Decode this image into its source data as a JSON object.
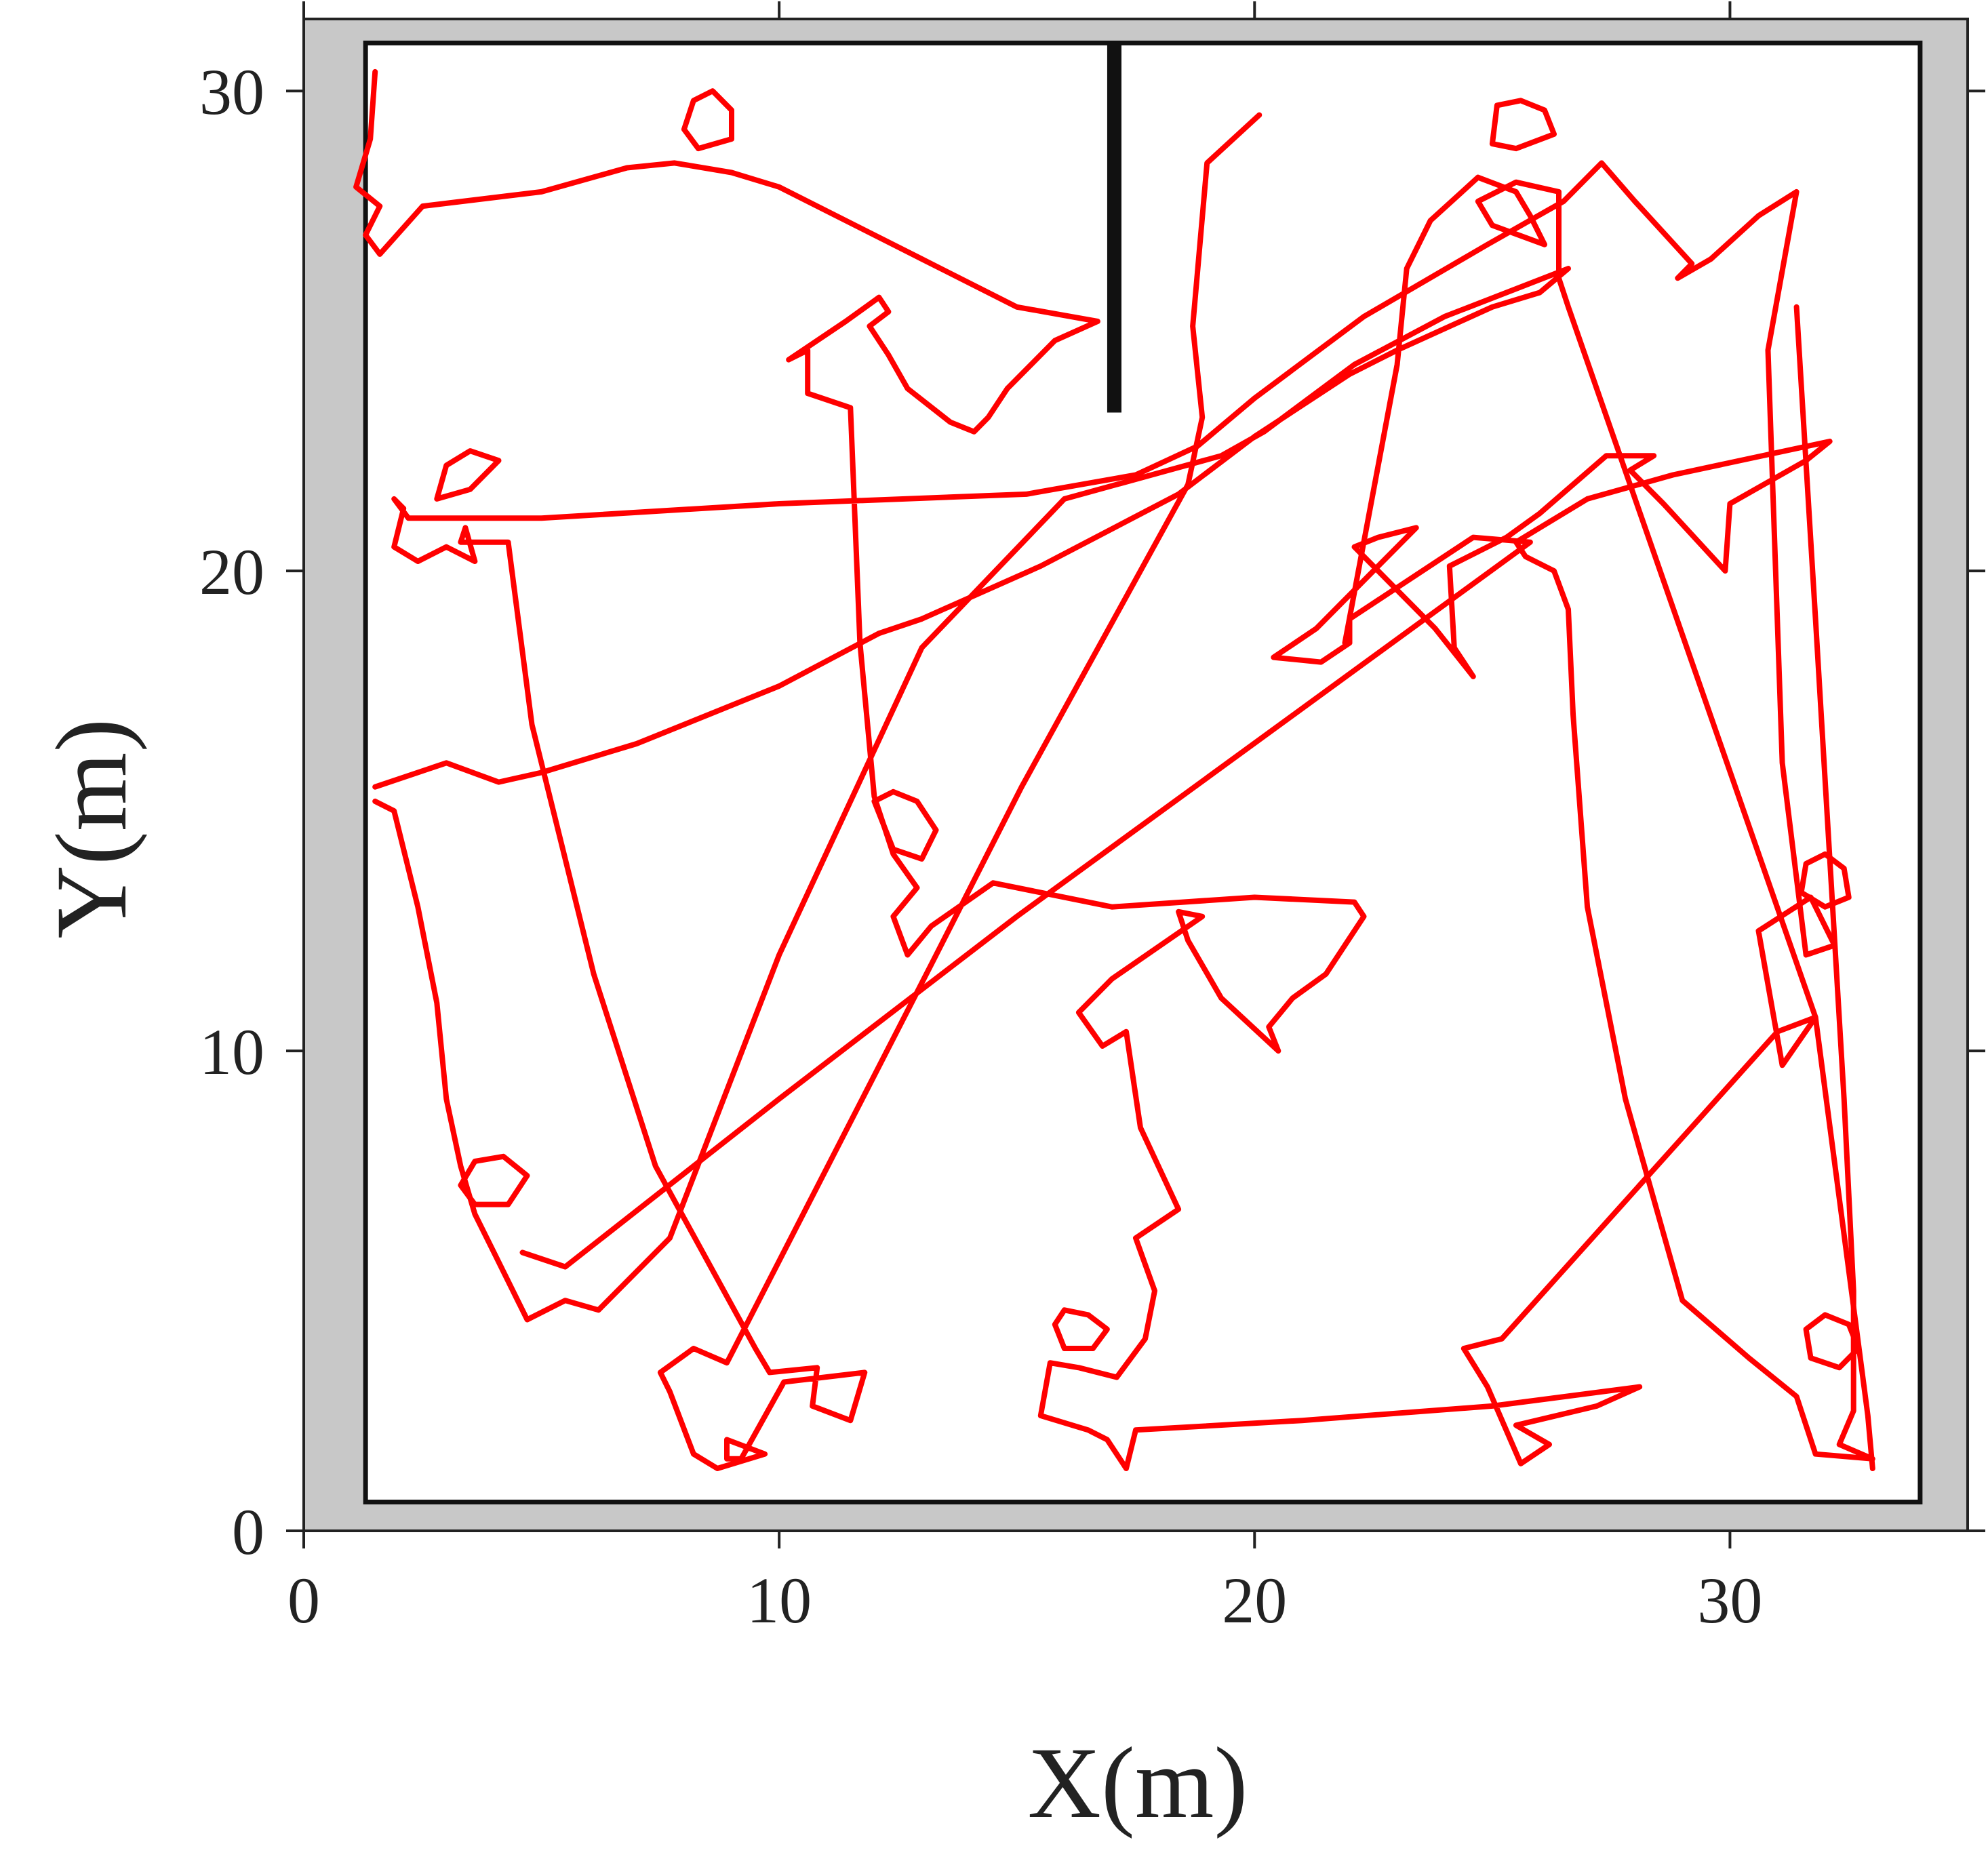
{
  "chart_data": {
    "type": "line",
    "title": "",
    "xlabel": "X(m)",
    "ylabel": "Y(m)",
    "xlim": [
      0,
      35
    ],
    "ylim": [
      0,
      31.5
    ],
    "xticks": [
      "0",
      "10",
      "20",
      "30"
    ],
    "yticks": [
      "0",
      "10",
      "20",
      "30"
    ],
    "grid": false,
    "legend": "none",
    "colors": {
      "trajectory": "#ff0000",
      "map_border": "#c8c8c8",
      "map_walls": "#111111",
      "axis": "#222222"
    },
    "map": {
      "outer_extent": {
        "x": [
          0,
          35
        ],
        "y": [
          0,
          31.5
        ]
      },
      "inner_floor": {
        "x": [
          1.3,
          34.0
        ],
        "y": [
          0.6,
          31.0
        ]
      },
      "partition_wall": {
        "x": [
          16.9,
          17.2
        ],
        "y": [
          23.3,
          31.0
        ]
      }
    },
    "series": [
      {
        "points": [
          [
            1.5,
            30.4
          ],
          [
            1.4,
            29.0
          ],
          [
            1.1,
            28.0
          ],
          [
            1.6,
            27.6
          ],
          [
            1.3,
            27.0
          ],
          [
            1.6,
            26.6
          ],
          [
            2.5,
            27.6
          ],
          [
            5.0,
            27.9
          ],
          [
            6.8,
            28.4
          ],
          [
            7.8,
            28.5
          ],
          [
            9.0,
            28.3
          ],
          [
            10.0,
            28.0
          ],
          [
            13.0,
            26.5
          ],
          [
            15.0,
            25.5
          ],
          [
            16.7,
            25.2
          ],
          [
            15.8,
            24.8
          ],
          [
            14.8,
            23.8
          ],
          [
            14.4,
            23.2
          ],
          [
            14.1,
            22.9
          ],
          [
            13.6,
            23.1
          ],
          [
            12.7,
            23.8
          ],
          [
            12.3,
            24.5
          ],
          [
            11.9,
            25.1
          ],
          [
            12.3,
            25.4
          ],
          [
            12.1,
            25.7
          ],
          [
            11.4,
            25.2
          ],
          [
            10.2,
            24.4
          ],
          [
            10.6,
            24.6
          ],
          [
            10.6,
            23.7
          ],
          [
            11.5,
            23.4
          ],
          [
            11.7,
            18.5
          ],
          [
            12.0,
            15.3
          ],
          [
            12.4,
            14.1
          ],
          [
            12.9,
            13.4
          ],
          [
            12.4,
            12.8
          ],
          [
            12.7,
            12.0
          ],
          [
            13.2,
            12.6
          ],
          [
            14.5,
            13.5
          ],
          [
            17.0,
            13.0
          ],
          [
            20.0,
            13.2
          ],
          [
            22.1,
            13.1
          ],
          [
            22.3,
            12.8
          ],
          [
            21.5,
            11.6
          ],
          [
            20.8,
            11.1
          ],
          [
            20.3,
            10.5
          ],
          [
            20.5,
            10.0
          ],
          [
            19.3,
            11.1
          ],
          [
            18.6,
            12.3
          ],
          [
            18.4,
            12.9
          ],
          [
            18.9,
            12.8
          ],
          [
            17.0,
            11.5
          ],
          [
            16.3,
            10.8
          ],
          [
            16.8,
            10.1
          ],
          [
            17.3,
            10.4
          ],
          [
            17.6,
            8.4
          ],
          [
            18.4,
            6.7
          ],
          [
            17.5,
            6.1
          ],
          [
            17.9,
            5.0
          ],
          [
            17.7,
            4.0
          ],
          [
            17.1,
            3.2
          ],
          [
            16.3,
            3.4
          ],
          [
            15.7,
            3.5
          ],
          [
            15.5,
            2.4
          ],
          [
            16.5,
            2.1
          ],
          [
            16.9,
            1.9
          ],
          [
            17.3,
            1.3
          ],
          [
            17.5,
            2.1
          ],
          [
            21.0,
            2.3
          ],
          [
            25.0,
            2.6
          ],
          [
            28.1,
            3.0
          ],
          [
            27.2,
            2.6
          ],
          [
            25.5,
            2.2
          ],
          [
            26.2,
            1.8
          ],
          [
            25.6,
            1.4
          ],
          [
            24.9,
            3.0
          ],
          [
            24.4,
            3.8
          ],
          [
            25.2,
            4.0
          ],
          [
            31.0,
            10.4
          ],
          [
            31.8,
            10.7
          ],
          [
            31.1,
            9.7
          ],
          [
            30.6,
            12.5
          ],
          [
            31.7,
            13.2
          ],
          [
            32.2,
            12.2
          ],
          [
            31.6,
            12.0
          ],
          [
            31.1,
            16.0
          ],
          [
            30.8,
            24.6
          ],
          [
            31.4,
            27.9
          ],
          [
            30.6,
            27.4
          ],
          [
            29.6,
            26.5
          ],
          [
            28.9,
            26.1
          ],
          [
            29.2,
            26.4
          ],
          [
            28.0,
            27.7
          ],
          [
            27.3,
            28.5
          ],
          [
            26.5,
            27.7
          ],
          [
            24.9,
            26.8
          ],
          [
            22.3,
            25.3
          ],
          [
            20.0,
            23.6
          ],
          [
            18.8,
            22.6
          ],
          [
            17.5,
            22.0
          ],
          [
            15.2,
            21.6
          ],
          [
            10.0,
            21.4
          ],
          [
            5.0,
            21.1
          ],
          [
            2.2,
            21.1
          ],
          [
            1.9,
            21.5
          ],
          [
            2.1,
            21.3
          ],
          [
            1.9,
            20.5
          ],
          [
            2.4,
            20.2
          ],
          [
            3.0,
            20.5
          ],
          [
            3.6,
            20.2
          ],
          [
            3.4,
            20.9
          ],
          [
            3.3,
            20.6
          ],
          [
            4.3,
            20.6
          ],
          [
            4.8,
            16.8
          ],
          [
            6.1,
            11.6
          ],
          [
            7.4,
            7.6
          ],
          [
            9.5,
            3.8
          ],
          [
            9.8,
            3.3
          ],
          [
            10.8,
            3.4
          ],
          [
            10.7,
            2.6
          ],
          [
            11.5,
            2.3
          ],
          [
            11.8,
            3.3
          ],
          [
            10.1,
            3.1
          ],
          [
            9.2,
            1.5
          ],
          [
            8.9,
            1.5
          ],
          [
            8.9,
            1.9
          ],
          [
            9.7,
            1.6
          ],
          [
            8.7,
            1.3
          ],
          [
            8.2,
            1.6
          ],
          [
            7.7,
            2.9
          ],
          [
            7.5,
            3.3
          ],
          [
            8.2,
            3.8
          ],
          [
            8.9,
            3.5
          ],
          [
            13.2,
            11.8
          ],
          [
            15.1,
            15.5
          ],
          [
            18.6,
            21.8
          ],
          [
            18.9,
            23.2
          ],
          [
            18.7,
            25.1
          ],
          [
            19.0,
            28.5
          ],
          [
            20.1,
            29.5
          ]
        ]
      },
      {
        "points": [
          [
            1.5,
            15.5
          ],
          [
            3.0,
            16.0
          ],
          [
            4.1,
            15.6
          ],
          [
            5.0,
            15.8
          ],
          [
            7.0,
            16.4
          ],
          [
            10.0,
            17.6
          ],
          [
            12.1,
            18.7
          ],
          [
            13.0,
            19.0
          ],
          [
            15.5,
            20.1
          ],
          [
            18.4,
            21.6
          ],
          [
            20.0,
            22.8
          ],
          [
            22.0,
            24.1
          ],
          [
            23.0,
            24.6
          ],
          [
            25.0,
            25.5
          ],
          [
            26.0,
            25.8
          ],
          [
            26.6,
            26.3
          ],
          [
            24.0,
            25.3
          ],
          [
            22.1,
            24.3
          ],
          [
            20.2,
            22.9
          ],
          [
            19.3,
            22.4
          ],
          [
            16.0,
            21.5
          ],
          [
            13.0,
            18.4
          ],
          [
            10.0,
            12.0
          ],
          [
            7.7,
            6.1
          ],
          [
            6.2,
            4.6
          ],
          [
            5.5,
            4.8
          ],
          [
            4.7,
            4.4
          ],
          [
            4.0,
            5.8
          ],
          [
            3.6,
            6.6
          ],
          [
            3.3,
            7.6
          ],
          [
            3.0,
            9.0
          ],
          [
            2.8,
            11.0
          ],
          [
            2.4,
            13.0
          ],
          [
            1.9,
            15.0
          ],
          [
            1.5,
            15.2
          ]
        ]
      },
      {
        "points": [
          [
            31.4,
            25.5
          ],
          [
            31.8,
            19.0
          ],
          [
            32.4,
            9.0
          ],
          [
            32.6,
            5.0
          ],
          [
            32.6,
            2.5
          ],
          [
            32.3,
            1.8
          ],
          [
            33.0,
            1.5
          ],
          [
            31.8,
            1.6
          ],
          [
            31.4,
            2.8
          ],
          [
            30.4,
            3.6
          ],
          [
            29.0,
            4.8
          ],
          [
            27.8,
            9.0
          ],
          [
            27.0,
            13.0
          ],
          [
            26.7,
            17.0
          ],
          [
            26.6,
            19.2
          ],
          [
            26.3,
            20.0
          ],
          [
            25.7,
            20.3
          ],
          [
            25.5,
            20.6
          ],
          [
            27.0,
            21.5
          ],
          [
            28.8,
            22.0
          ],
          [
            32.1,
            22.7
          ],
          [
            31.6,
            22.3
          ],
          [
            30.0,
            21.4
          ],
          [
            29.9,
            20.0
          ],
          [
            28.6,
            21.4
          ],
          [
            27.9,
            22.1
          ],
          [
            28.4,
            22.4
          ],
          [
            27.4,
            22.4
          ],
          [
            26.0,
            21.2
          ],
          [
            25.3,
            20.7
          ],
          [
            24.1,
            20.1
          ],
          [
            24.2,
            18.4
          ],
          [
            24.6,
            17.8
          ],
          [
            23.8,
            18.8
          ],
          [
            22.1,
            20.5
          ],
          [
            22.6,
            20.7
          ],
          [
            23.4,
            20.9
          ],
          [
            22.1,
            19.6
          ],
          [
            21.3,
            18.8
          ],
          [
            20.4,
            18.2
          ],
          [
            21.4,
            18.1
          ],
          [
            22.0,
            18.5
          ],
          [
            22.0,
            19.0
          ],
          [
            24.6,
            20.7
          ],
          [
            25.8,
            20.6
          ],
          [
            15.0,
            12.8
          ],
          [
            10.0,
            9.0
          ],
          [
            5.5,
            5.5
          ],
          [
            4.6,
            5.8
          ]
        ]
      },
      {
        "points": [
          [
            21.9,
            18.5
          ],
          [
            23.0,
            24.3
          ],
          [
            23.2,
            26.3
          ],
          [
            23.7,
            27.3
          ],
          [
            24.7,
            28.2
          ],
          [
            25.5,
            27.9
          ],
          [
            25.8,
            27.4
          ],
          [
            26.1,
            26.8
          ],
          [
            25.0,
            27.2
          ],
          [
            24.7,
            27.7
          ],
          [
            25.5,
            28.1
          ],
          [
            26.4,
            27.9
          ],
          [
            26.4,
            26.1
          ],
          [
            26.6,
            25.5
          ],
          [
            31.8,
            10.7
          ],
          [
            32.9,
            2.4
          ],
          [
            33.0,
            1.3
          ]
        ]
      },
      {
        "points": [
          [
            2.8,
            21.5
          ],
          [
            3.0,
            22.2
          ],
          [
            3.5,
            22.5
          ],
          [
            4.1,
            22.3
          ],
          [
            3.5,
            21.7
          ],
          [
            2.8,
            21.5
          ]
        ]
      },
      {
        "points": [
          [
            8.0,
            29.2
          ],
          [
            8.2,
            29.8
          ],
          [
            8.6,
            30.0
          ],
          [
            9.0,
            29.6
          ],
          [
            9.0,
            29.0
          ],
          [
            8.3,
            28.8
          ],
          [
            8.0,
            29.2
          ]
        ]
      },
      {
        "points": [
          [
            25.0,
            28.9
          ],
          [
            25.1,
            29.7
          ],
          [
            25.6,
            29.8
          ],
          [
            26.1,
            29.6
          ],
          [
            26.3,
            29.1
          ],
          [
            25.5,
            28.8
          ],
          [
            25.0,
            28.9
          ]
        ]
      },
      {
        "points": [
          [
            3.3,
            7.2
          ],
          [
            3.6,
            7.7
          ],
          [
            4.2,
            7.8
          ],
          [
            4.7,
            7.4
          ],
          [
            4.3,
            6.8
          ],
          [
            3.6,
            6.8
          ],
          [
            3.3,
            7.2
          ]
        ]
      },
      {
        "points": [
          [
            15.8,
            4.3
          ],
          [
            16.0,
            4.6
          ],
          [
            16.5,
            4.5
          ],
          [
            16.9,
            4.2
          ],
          [
            16.6,
            3.8
          ],
          [
            16.0,
            3.8
          ],
          [
            15.8,
            4.3
          ]
        ]
      },
      {
        "points": [
          [
            31.6,
            13.9
          ],
          [
            32.0,
            14.1
          ],
          [
            32.4,
            13.8
          ],
          [
            32.5,
            13.2
          ],
          [
            32.0,
            13.0
          ],
          [
            31.5,
            13.3
          ],
          [
            31.6,
            13.9
          ]
        ]
      },
      {
        "points": [
          [
            31.6,
            4.2
          ],
          [
            32.0,
            4.5
          ],
          [
            32.5,
            4.3
          ],
          [
            32.7,
            3.8
          ],
          [
            32.3,
            3.4
          ],
          [
            31.7,
            3.6
          ],
          [
            31.6,
            4.2
          ]
        ]
      },
      {
        "points": [
          [
            12.0,
            15.2
          ],
          [
            12.4,
            15.4
          ],
          [
            12.9,
            15.2
          ],
          [
            13.3,
            14.6
          ],
          [
            13.0,
            14.0
          ],
          [
            12.4,
            14.2
          ],
          [
            12.0,
            15.2
          ]
        ]
      }
    ]
  }
}
